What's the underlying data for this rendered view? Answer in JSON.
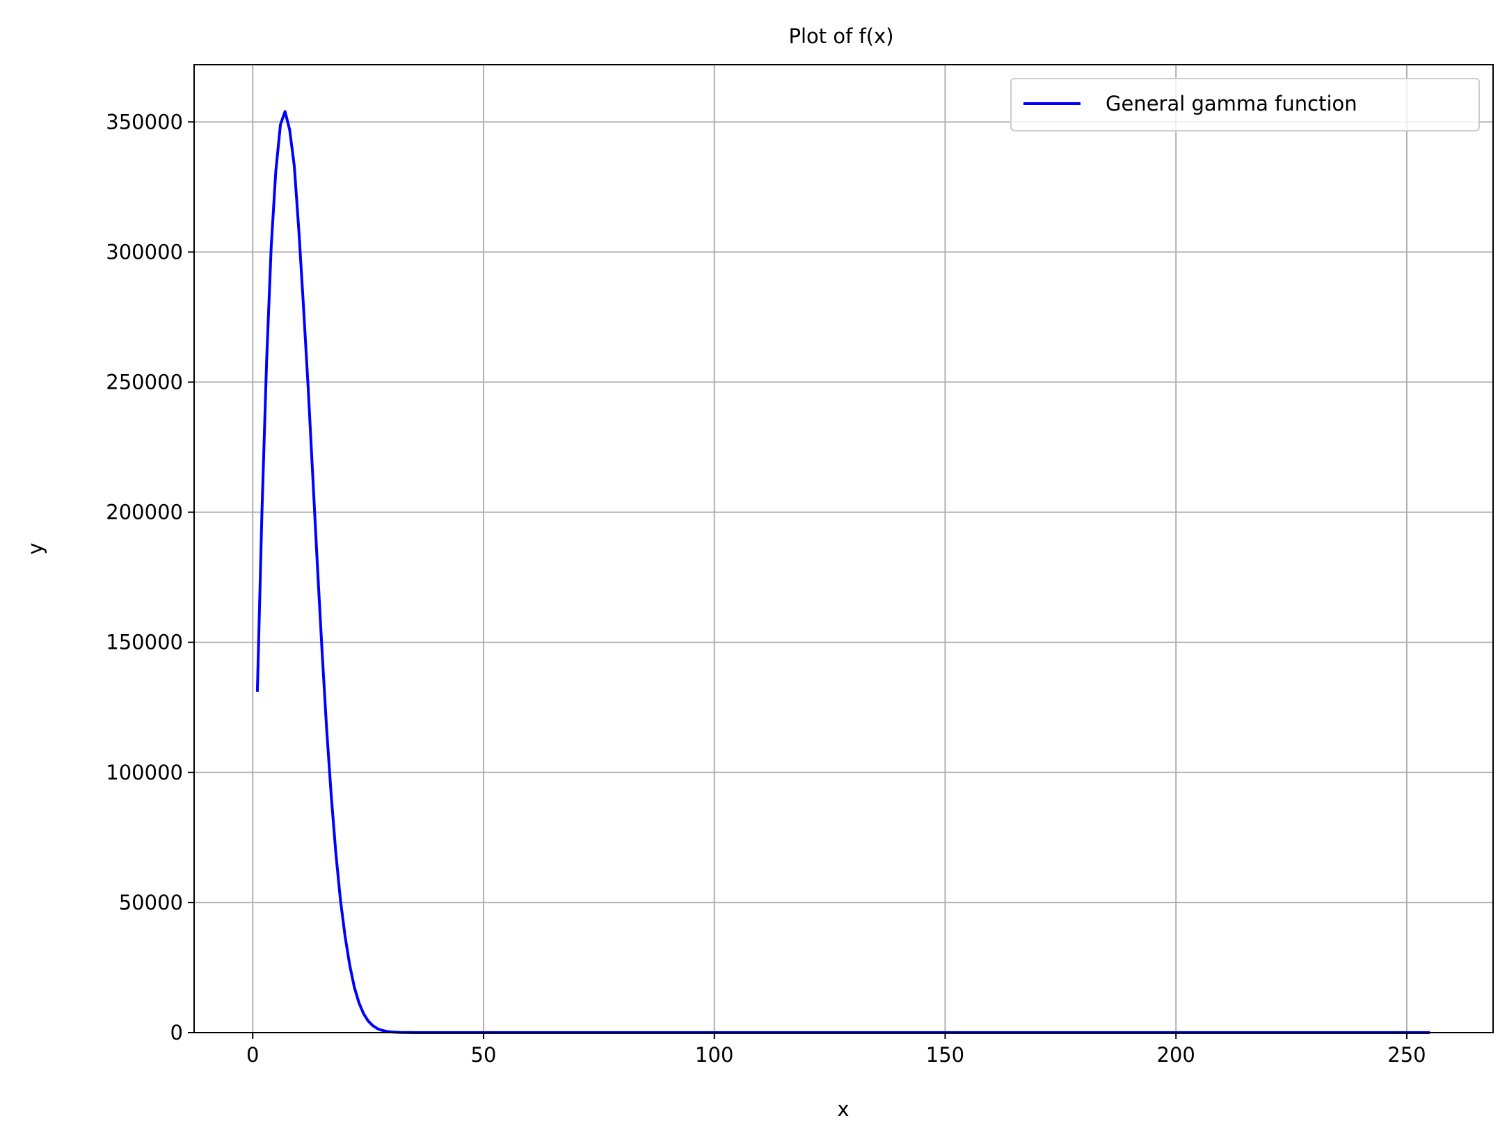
{
  "chart_data": {
    "type": "line",
    "title": "Plot of f(x)",
    "xlabel": "x",
    "ylabel": "y",
    "xlim": [
      -12.7,
      268.7
    ],
    "ylim": [
      0,
      372000
    ],
    "xticks": [
      0,
      50,
      100,
      150,
      200,
      250
    ],
    "yticks": [
      0,
      50000,
      100000,
      150000,
      200000,
      250000,
      300000,
      350000
    ],
    "grid": true,
    "legend_position": "top-right",
    "series": [
      {
        "name": "General gamma function",
        "color": "#0000ff",
        "x": [
          1,
          2,
          3,
          4,
          5,
          6,
          7,
          8,
          9,
          10,
          11,
          12,
          13,
          14,
          15,
          16,
          17,
          18,
          19,
          20,
          21,
          22,
          23,
          24,
          25,
          26,
          27,
          28,
          29,
          30,
          32,
          35,
          40,
          50,
          75,
          100,
          150,
          200,
          255
        ],
        "y": [
          131000,
          200000,
          258000,
          302000,
          331000,
          349000,
          354000,
          347000,
          333000,
          308000,
          279000,
          248000,
          214000,
          180000,
          147000,
          117000,
          91000,
          69000,
          51000,
          37000,
          26000,
          17500,
          11500,
          7300,
          4500,
          2700,
          1550,
          870,
          470,
          250,
          65,
          8,
          0,
          0,
          0,
          0,
          0,
          0,
          0
        ]
      }
    ]
  }
}
